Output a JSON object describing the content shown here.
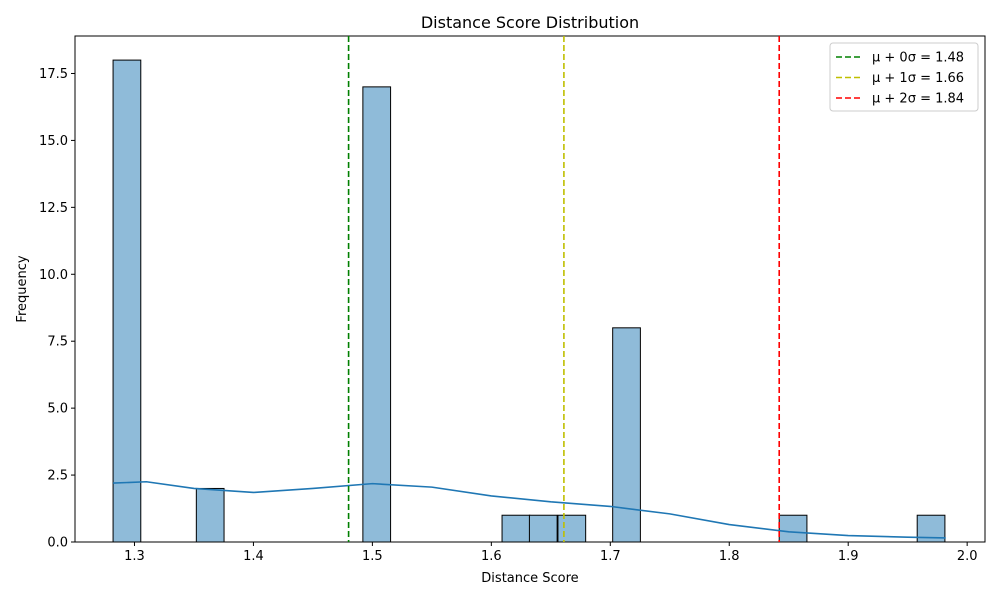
{
  "chart_data": {
    "type": "bar",
    "title": "Distance Score Distribution",
    "xlabel": "Distance Score",
    "ylabel": "Frequency",
    "xlim": [
      1.25,
      2.015
    ],
    "ylim": [
      0,
      18.9
    ],
    "xticks": [
      1.3,
      1.4,
      1.5,
      1.6,
      1.7,
      1.8,
      1.9,
      2.0
    ],
    "xtick_labels": [
      "1.3",
      "1.4",
      "1.5",
      "1.6",
      "1.7",
      "1.8",
      "1.9",
      "2.0"
    ],
    "yticks": [
      0,
      2.5,
      5,
      7.5,
      10,
      12.5,
      15,
      17.5
    ],
    "ytick_labels": [
      "0.0",
      "2.5",
      "5.0",
      "7.5",
      "10.0",
      "12.5",
      "15.0",
      "17.5"
    ],
    "bin_width": 0.0233,
    "bins": [
      {
        "x": 1.282,
        "count": 18
      },
      {
        "x": 1.352,
        "count": 2
      },
      {
        "x": 1.492,
        "count": 17
      },
      {
        "x": 1.609,
        "count": 1
      },
      {
        "x": 1.632,
        "count": 1
      },
      {
        "x": 1.656,
        "count": 1
      },
      {
        "x": 1.702,
        "count": 8
      },
      {
        "x": 1.842,
        "count": 1
      },
      {
        "x": 1.958,
        "count": 1
      }
    ],
    "kde": {
      "x": [
        1.282,
        1.31,
        1.35,
        1.4,
        1.45,
        1.5,
        1.55,
        1.6,
        1.65,
        1.7,
        1.75,
        1.8,
        1.85,
        1.9,
        1.95,
        1.982
      ],
      "y": [
        2.2,
        2.25,
        2.0,
        1.85,
        2.0,
        2.18,
        2.05,
        1.72,
        1.5,
        1.33,
        1.05,
        0.65,
        0.38,
        0.24,
        0.18,
        0.15
      ]
    },
    "reference_lines": [
      {
        "value": 1.48,
        "color": "#008000",
        "label": "μ + 0σ = 1.48"
      },
      {
        "value": 1.661,
        "color": "#bfbf00",
        "label": "μ + 1σ = 1.66"
      },
      {
        "value": 1.842,
        "color": "#ff0000",
        "label": "μ + 2σ = 1.84"
      }
    ],
    "colors": {
      "bar_fill": "#8fbbd9",
      "bar_edge": "#000000",
      "kde_line": "#1f77b4"
    },
    "legend_position": "top-right"
  }
}
